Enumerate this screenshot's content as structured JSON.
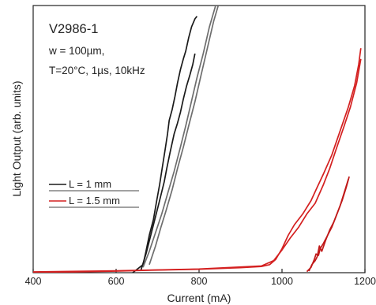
{
  "chart_data": {
    "type": "line",
    "title": "",
    "xlabel": "Current (mA)",
    "ylabel": "Light Output (arb. units)",
    "xlim": [
      400,
      1200
    ],
    "ylim": [
      0,
      100
    ],
    "x_ticks": [
      400,
      600,
      800,
      1000,
      1200
    ],
    "y_ticks_shown": false,
    "grid": false,
    "legend_placement": "lower-left",
    "annotations": [
      "V2986-1",
      "w = 100µm,",
      "T=20°C, 1µs, 10kHz"
    ],
    "series": [
      {
        "name": "L = 1 mm",
        "color": "#1a1a1a",
        "curves": [
          [
            [
              640,
              0
            ],
            [
              665,
              3
            ],
            [
              672,
              8
            ],
            [
              680,
              14
            ],
            [
              690,
              20
            ],
            [
              698,
              27
            ],
            [
              705,
              33
            ],
            [
              712,
              40
            ],
            [
              718,
              46
            ],
            [
              724,
              52
            ],
            [
              728,
              57
            ],
            [
              735,
              61
            ],
            [
              742,
              66
            ],
            [
              748,
              71
            ],
            [
              755,
              76
            ],
            [
              762,
              80
            ],
            [
              768,
              83
            ],
            [
              775,
              88
            ],
            [
              782,
              92
            ],
            [
              790,
              95
            ],
            [
              795,
              96
            ]
          ],
          [
            [
              660,
              1
            ],
            [
              672,
              7
            ],
            [
              682,
              13
            ],
            [
              690,
              18
            ],
            [
              700,
              24
            ],
            [
              708,
              29
            ],
            [
              716,
              34
            ],
            [
              722,
              39
            ],
            [
              730,
              45
            ],
            [
              740,
              52
            ],
            [
              748,
              56
            ],
            [
              755,
              60
            ],
            [
              762,
              65
            ],
            [
              770,
              70
            ],
            [
              778,
              74
            ],
            [
              785,
              78
            ],
            [
              790,
              82
            ]
          ]
        ]
      },
      {
        "name": "",
        "color": "#6e6e6e",
        "curves": [
          [
            [
              665,
              2
            ],
            [
              680,
              8
            ],
            [
              695,
              15
            ],
            [
              710,
              22
            ],
            [
              725,
              30
            ],
            [
              740,
              38
            ],
            [
              755,
              47
            ],
            [
              768,
              55
            ],
            [
              780,
              63
            ],
            [
              795,
              73
            ],
            [
              810,
              82
            ],
            [
              825,
              92
            ],
            [
              840,
              100
            ],
            [
              858,
              106
            ],
            [
              870,
              115
            ]
          ],
          [
            [
              680,
              3
            ],
            [
              695,
              10
            ],
            [
              708,
              17
            ],
            [
              720,
              23
            ],
            [
              735,
              31
            ],
            [
              748,
              39
            ],
            [
              762,
              47
            ],
            [
              775,
              55
            ],
            [
              790,
              64
            ],
            [
              805,
              74
            ],
            [
              820,
              84
            ],
            [
              835,
              94
            ],
            [
              850,
              102
            ],
            [
              868,
              112
            ],
            [
              880,
              118
            ]
          ]
        ]
      },
      {
        "name": "L = 1.5 mm",
        "color": "#d42020",
        "curves": [
          [
            [
              400,
              0.2
            ],
            [
              500,
              0.3
            ],
            [
              600,
              0.6
            ],
            [
              680,
              0.9
            ],
            [
              800,
              1.3
            ],
            [
              900,
              1.9
            ],
            [
              950,
              2.3
            ],
            [
              970,
              3
            ],
            [
              985,
              5
            ],
            [
              1000,
              9
            ],
            [
              1015,
              14
            ],
            [
              1030,
              18
            ],
            [
              1050,
              22
            ],
            [
              1070,
              27
            ],
            [
              1085,
              32
            ],
            [
              1100,
              37
            ],
            [
              1120,
              44
            ],
            [
              1140,
              53
            ],
            [
              1160,
              62
            ],
            [
              1175,
              70
            ],
            [
              1185,
              78
            ],
            [
              1190,
              84
            ]
          ],
          [
            [
              400,
              0.3
            ],
            [
              600,
              0.7
            ],
            [
              800,
              1.4
            ],
            [
              950,
              2.5
            ],
            [
              980,
              4.5
            ],
            [
              1000,
              8.5
            ],
            [
              1020,
              13
            ],
            [
              1040,
              17
            ],
            [
              1060,
              22
            ],
            [
              1080,
              26
            ],
            [
              1100,
              33
            ],
            [
              1115,
              39
            ],
            [
              1130,
              46
            ],
            [
              1150,
              55
            ],
            [
              1165,
              62
            ],
            [
              1180,
              71
            ],
            [
              1190,
              80
            ]
          ]
        ]
      },
      {
        "name": "",
        "color": "#c01818",
        "curves": [
          [
            [
              1060,
              0.4
            ],
            [
              1070,
              2
            ],
            [
              1078,
              5
            ],
            [
              1082,
              7
            ],
            [
              1088,
              6.5
            ],
            [
              1092,
              9
            ],
            [
              1100,
              11
            ],
            [
              1110,
              14
            ],
            [
              1120,
              17
            ],
            [
              1130,
              21
            ],
            [
              1140,
              25
            ],
            [
              1150,
              30
            ],
            [
              1160,
              35
            ]
          ],
          [
            [
              1065,
              0.6
            ],
            [
              1072,
              3
            ],
            [
              1080,
              4.5
            ],
            [
              1085,
              6
            ],
            [
              1090,
              10
            ],
            [
              1096,
              8
            ],
            [
              1105,
              12
            ],
            [
              1115,
              16
            ],
            [
              1125,
              19
            ],
            [
              1135,
              23
            ],
            [
              1145,
              27
            ],
            [
              1155,
              32
            ],
            [
              1162,
              36
            ]
          ]
        ]
      }
    ]
  }
}
